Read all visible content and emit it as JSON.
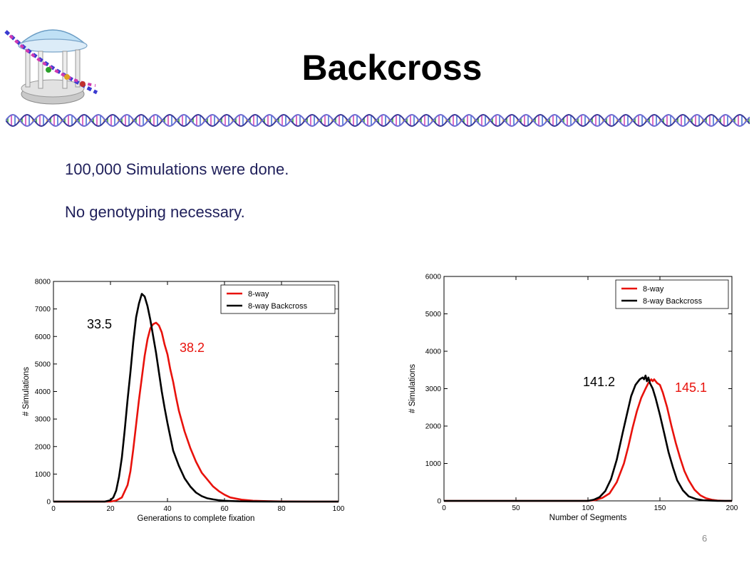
{
  "slide": {
    "title": "Backcross",
    "bullets": [
      "100,000 Simulations were done.",
      "No genotyping necessary."
    ],
    "page_number": "6"
  },
  "colors": {
    "red": "#e8120c",
    "black": "#000000",
    "text": "#1f1f5a"
  },
  "logo": {
    "icon": "old-well-dna-logo-icon"
  },
  "divider": {
    "icon": "dna-helix-divider-icon"
  },
  "chart_data": [
    {
      "type": "line",
      "xlabel": "Generations to complete fixation",
      "ylabel": "# Simulations",
      "xlim": [
        0,
        100
      ],
      "ylim": [
        0,
        8000
      ],
      "xticks": [
        0,
        20,
        40,
        60,
        80,
        100
      ],
      "yticks": [
        0,
        1000,
        2000,
        3000,
        4000,
        5000,
        6000,
        7000,
        8000
      ],
      "legend": "top-right",
      "grid": false,
      "series": [
        {
          "name": "8-way",
          "color": "#e8120c",
          "annotation": "38.2",
          "x": [
            0,
            20,
            22,
            24,
            26,
            27,
            28,
            29,
            30,
            31,
            32,
            33,
            34,
            35,
            36,
            37,
            38,
            39,
            40,
            41,
            42,
            43,
            44,
            46,
            48,
            50,
            52,
            54,
            56,
            58,
            60,
            62,
            64,
            66,
            68,
            70,
            75,
            80,
            90,
            100
          ],
          "y": [
            0,
            0,
            40,
            150,
            600,
            1100,
            1900,
            2800,
            3700,
            4500,
            5300,
            5900,
            6300,
            6450,
            6500,
            6400,
            6150,
            5700,
            5350,
            4800,
            4350,
            3800,
            3300,
            2550,
            1950,
            1450,
            1050,
            800,
            550,
            380,
            250,
            150,
            110,
            70,
            50,
            30,
            15,
            5,
            0,
            0
          ]
        },
        {
          "name": "8-way Backcross",
          "color": "#000000",
          "annotation": "33.5",
          "x": [
            0,
            18,
            20,
            21,
            22,
            23,
            24,
            25,
            26,
            27,
            28,
            29,
            30,
            31,
            32,
            33,
            34,
            35,
            36,
            37,
            38,
            39,
            40,
            41,
            42,
            44,
            46,
            48,
            50,
            52,
            54,
            56,
            58,
            60,
            62,
            65,
            70,
            80,
            100
          ],
          "y": [
            0,
            0,
            50,
            150,
            400,
            900,
            1600,
            2600,
            3700,
            4700,
            5800,
            6700,
            7200,
            7550,
            7450,
            7100,
            6600,
            6000,
            5400,
            4700,
            4000,
            3400,
            2850,
            2350,
            1850,
            1300,
            850,
            550,
            330,
            200,
            120,
            80,
            50,
            30,
            20,
            10,
            5,
            0,
            0
          ]
        }
      ]
    },
    {
      "type": "line",
      "xlabel": "Number of Segments",
      "ylabel": "# Simulations",
      "xlim": [
        0,
        200
      ],
      "ylim": [
        0,
        6000
      ],
      "xticks": [
        0,
        50,
        100,
        150,
        200
      ],
      "yticks": [
        0,
        1000,
        2000,
        3000,
        4000,
        5000,
        6000
      ],
      "legend": "top-right",
      "grid": false,
      "series": [
        {
          "name": "8-way",
          "color": "#e8120c",
          "annotation": "145.1",
          "x": [
            0,
            100,
            105,
            110,
            115,
            120,
            125,
            128,
            131,
            134,
            137,
            140,
            142,
            144,
            145,
            146,
            148,
            150,
            152,
            155,
            158,
            161,
            164,
            167,
            170,
            174,
            178,
            182,
            186,
            190,
            195,
            200
          ],
          "y": [
            0,
            0,
            20,
            80,
            200,
            500,
            1000,
            1450,
            1950,
            2400,
            2750,
            3000,
            3150,
            3250,
            3200,
            3250,
            3150,
            3100,
            2900,
            2500,
            2000,
            1550,
            1150,
            800,
            550,
            300,
            150,
            70,
            30,
            10,
            0,
            0
          ]
        },
        {
          "name": "8-way Backcross",
          "color": "#000000",
          "annotation": "141.2",
          "x": [
            0,
            100,
            104,
            108,
            112,
            116,
            120,
            124,
            127,
            130,
            133,
            136,
            138,
            139,
            140,
            141,
            142,
            143,
            145,
            147,
            150,
            153,
            156,
            159,
            162,
            166,
            170,
            175,
            180,
            190,
            200
          ],
          "y": [
            0,
            0,
            30,
            100,
            260,
            580,
            1100,
            1800,
            2300,
            2800,
            3100,
            3250,
            3300,
            3250,
            3350,
            3200,
            3300,
            3150,
            3000,
            2750,
            2300,
            1800,
            1300,
            900,
            550,
            280,
            120,
            50,
            15,
            0,
            0
          ]
        }
      ]
    }
  ]
}
